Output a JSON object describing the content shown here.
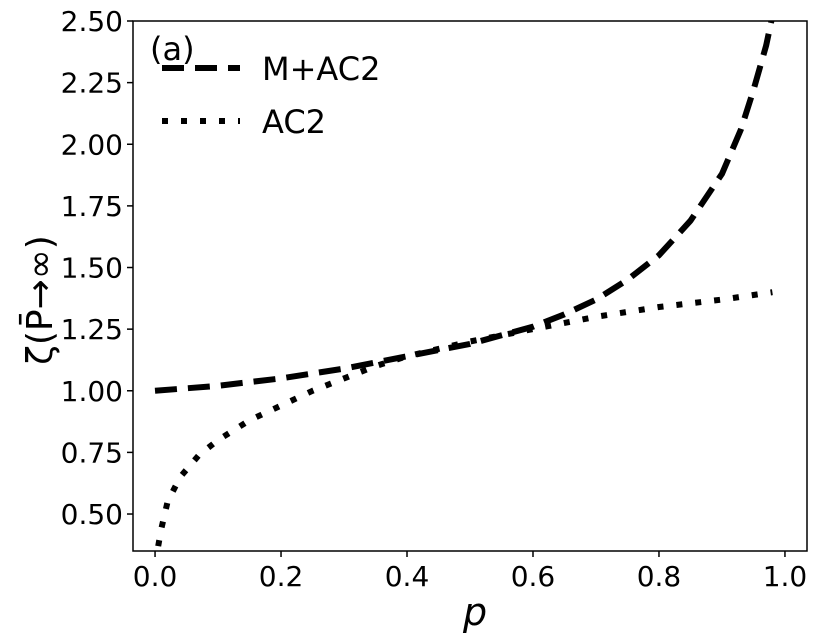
{
  "chart_data": {
    "type": "line",
    "annotation": "(a)",
    "xlabel": "p",
    "ylabel": "ζ(P̄→∞)",
    "xlim": [
      -0.035,
      1.035
    ],
    "ylim": [
      0.35,
      2.5
    ],
    "xticks": [
      0.0,
      0.2,
      0.4,
      0.6,
      0.8,
      1.0
    ],
    "xtick_labels": [
      "0.0",
      "0.2",
      "0.4",
      "0.6",
      "0.8",
      "1.0"
    ],
    "yticks": [
      0.5,
      0.75,
      1.0,
      1.25,
      1.5,
      1.75,
      2.0,
      2.25,
      2.5
    ],
    "ytick_labels": [
      "0.50",
      "0.75",
      "1.00",
      "1.25",
      "1.50",
      "1.75",
      "2.00",
      "2.25",
      "2.50"
    ],
    "grid": false,
    "legend_position": "top-left",
    "series": [
      {
        "name": "M+AC2",
        "style": "dashed",
        "color": "#000000",
        "x": [
          0.0,
          0.1,
          0.2,
          0.3,
          0.4,
          0.5,
          0.6,
          0.65,
          0.7,
          0.75,
          0.8,
          0.85,
          0.9,
          0.93,
          0.95,
          0.97,
          0.98
        ],
        "y": [
          1.0,
          1.02,
          1.05,
          1.09,
          1.14,
          1.19,
          1.26,
          1.31,
          1.37,
          1.45,
          1.55,
          1.69,
          1.88,
          2.06,
          2.22,
          2.4,
          2.52
        ]
      },
      {
        "name": "AC2",
        "style": "dotted",
        "color": "#000000",
        "x": [
          0.005,
          0.01,
          0.02,
          0.04,
          0.07,
          0.1,
          0.15,
          0.2,
          0.25,
          0.3,
          0.35,
          0.4,
          0.5,
          0.6,
          0.7,
          0.8,
          0.9,
          0.98
        ],
        "y": [
          0.37,
          0.44,
          0.55,
          0.65,
          0.74,
          0.8,
          0.88,
          0.94,
          1.0,
          1.05,
          1.1,
          1.14,
          1.2,
          1.25,
          1.3,
          1.34,
          1.37,
          1.4
        ]
      }
    ]
  }
}
